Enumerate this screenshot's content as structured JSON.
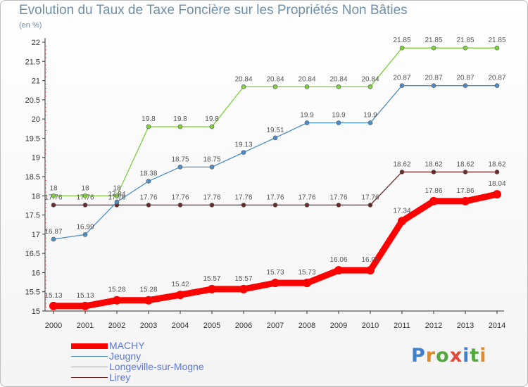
{
  "title": "Evolution du Taux de Taxe Foncière sur les Propriétés Non Bâties",
  "unit": "(en %)",
  "logo": {
    "text": "Proxiti",
    "letter_colors": [
      "#3d7fd1",
      "#e08a2a",
      "#52a83c",
      "#e04a3c",
      "#3d7fd1",
      "#52a83c",
      "#e08a2a"
    ]
  },
  "chart_data": {
    "type": "line",
    "x": [
      "2000",
      "2001",
      "2002",
      "2003",
      "2004",
      "2005",
      "2006",
      "2007",
      "2008",
      "2009",
      "2010",
      "2011",
      "2012",
      "2013",
      "2014"
    ],
    "ylim": [
      15,
      22
    ],
    "yticks": [
      "15",
      "15.5",
      "16",
      "16.5",
      "17",
      "17.5",
      "18",
      "18.5",
      "19",
      "19.5",
      "20",
      "20.5",
      "21",
      "21.5",
      "22"
    ],
    "grid": false,
    "legend": "bottom-left",
    "series": [
      {
        "name": "MACHY",
        "color": "#ff0000",
        "bold": true,
        "values": [
          15.13,
          15.13,
          15.28,
          15.28,
          15.42,
          15.57,
          15.57,
          15.73,
          15.73,
          16.06,
          16.06,
          17.34,
          17.86,
          17.86,
          18.04
        ],
        "labels": [
          "15.13",
          "15.13",
          "15.28",
          "15.28",
          "15.42",
          "15.57",
          "15.57",
          "15.73",
          "15.73",
          "16.06",
          "16.06",
          "17.34",
          "17.86",
          "17.86",
          "18.04"
        ]
      },
      {
        "name": "Jeugny",
        "color": "#4f8fc8",
        "values": [
          16.87,
          16.99,
          17.84,
          18.38,
          18.75,
          18.75,
          19.13,
          19.51,
          19.9,
          19.9,
          19.9,
          20.87,
          20.87,
          20.87,
          20.87
        ],
        "labels": [
          "16.87",
          "16.99",
          "17.84",
          "18.38",
          "18.75",
          "18.75",
          "19.13",
          "19.51",
          "19.9",
          "19.9",
          "19.9",
          "20.87",
          "20.87",
          "20.87",
          "20.87"
        ]
      },
      {
        "name": "Longeville-sur-Mogne",
        "color": "#7fcf3f",
        "values": [
          18,
          18,
          18,
          19.8,
          19.8,
          19.8,
          20.84,
          20.84,
          20.84,
          20.84,
          20.84,
          21.85,
          21.85,
          21.85,
          21.85
        ],
        "labels": [
          "18",
          "18",
          "18",
          "19.8",
          "19.8",
          "19.8",
          "20.84",
          "20.84",
          "20.84",
          "20.84",
          "20.84",
          "21.85",
          "21.85",
          "21.85",
          "21.85"
        ]
      },
      {
        "name": "Lirey",
        "color": "#6b2a2a",
        "values": [
          17.76,
          17.76,
          17.76,
          17.76,
          17.76,
          17.76,
          17.76,
          17.76,
          17.76,
          17.76,
          17.76,
          18.62,
          18.62,
          18.62,
          18.62
        ],
        "labels": [
          "17.76",
          "17.76",
          "17.76",
          "17.76",
          "17.76",
          "17.76",
          "17.76",
          "17.76",
          "17.76",
          "17.76",
          "17.76",
          "18.62",
          "18.62",
          "18.62",
          "18.62"
        ]
      }
    ]
  }
}
